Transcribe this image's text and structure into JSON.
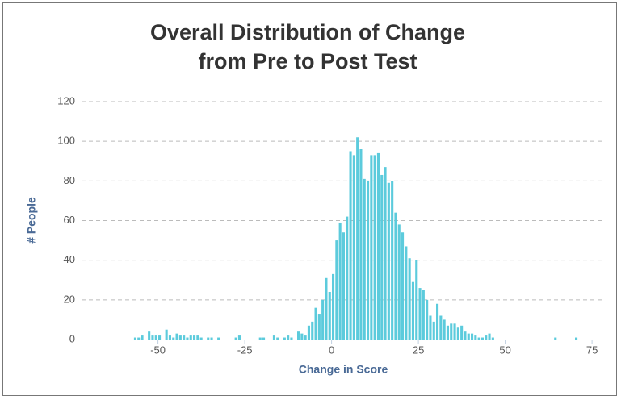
{
  "chart_data": {
    "type": "histogram",
    "title": [
      "Overall Distribution of Change",
      "from Pre to Post Test"
    ],
    "xlabel": "Change in Score",
    "ylabel": "# People",
    "color": "#5ccbdc",
    "bins": [
      -60,
      -59,
      -58,
      -57,
      -56,
      -55,
      -54,
      -53,
      -52,
      -51,
      -50,
      -49,
      -48,
      -47,
      -46,
      -45,
      -44,
      -43,
      -42,
      -41,
      -40,
      -39,
      -38,
      -37,
      -36,
      -35,
      -34,
      -33,
      -32,
      -31,
      -30,
      -29,
      -28,
      -27,
      -26,
      -25,
      -24,
      -23,
      -22,
      -21,
      -20,
      -19,
      -18,
      -17,
      -16,
      -15,
      -14,
      -13,
      -12,
      -11,
      -10,
      -9,
      -8,
      -7,
      -6,
      -5,
      -4,
      -3,
      -2,
      -1,
      0,
      1,
      2,
      3,
      4,
      5,
      6,
      7,
      8,
      9,
      10,
      11,
      12,
      13,
      14,
      15,
      16,
      17,
      18,
      19,
      20,
      21,
      22,
      23,
      24,
      25,
      26,
      27,
      28,
      29,
      30,
      31,
      32,
      33,
      34,
      35,
      36,
      37,
      38,
      39,
      40,
      41,
      42,
      43,
      44,
      45,
      46,
      47,
      48,
      49,
      50,
      51,
      52,
      53,
      54,
      55,
      56,
      57,
      58,
      59,
      60,
      61,
      62,
      63,
      64,
      65,
      66,
      67,
      68,
      69,
      70,
      71,
      72
    ],
    "counts": [
      0,
      0,
      0,
      1,
      1,
      2,
      0,
      4,
      2,
      2,
      2,
      0,
      5,
      2,
      1,
      3,
      2,
      2,
      1,
      2,
      2,
      2,
      1,
      0,
      1,
      1,
      0,
      1,
      0,
      0,
      0,
      0,
      1,
      2,
      0,
      0,
      0,
      0,
      0,
      1,
      1,
      0,
      0,
      2,
      1,
      0,
      1,
      2,
      1,
      0,
      4,
      3,
      2,
      7,
      9,
      16,
      13,
      20,
      31,
      24,
      33,
      50,
      59,
      54,
      62,
      95,
      93,
      102,
      96,
      81,
      80,
      93,
      93,
      94,
      83,
      87,
      79,
      80,
      64,
      58,
      54,
      47,
      41,
      29,
      40,
      26,
      25,
      20,
      12,
      9,
      18,
      12,
      10,
      7,
      8,
      8,
      6,
      7,
      4,
      3,
      3,
      2,
      1,
      1,
      2,
      3,
      1,
      0,
      0,
      0,
      0,
      0,
      0,
      0,
      0,
      0,
      0,
      0,
      0,
      0,
      0,
      0,
      0,
      0,
      1,
      0,
      0,
      0,
      0,
      0,
      1,
      0
    ],
    "xlim": [
      -72,
      78
    ],
    "ylim": [
      0,
      120
    ],
    "xticks": [
      -50,
      -25,
      0,
      25,
      50,
      75
    ],
    "yticks": [
      0,
      20,
      40,
      60,
      80,
      100,
      120
    ],
    "grid": true
  }
}
